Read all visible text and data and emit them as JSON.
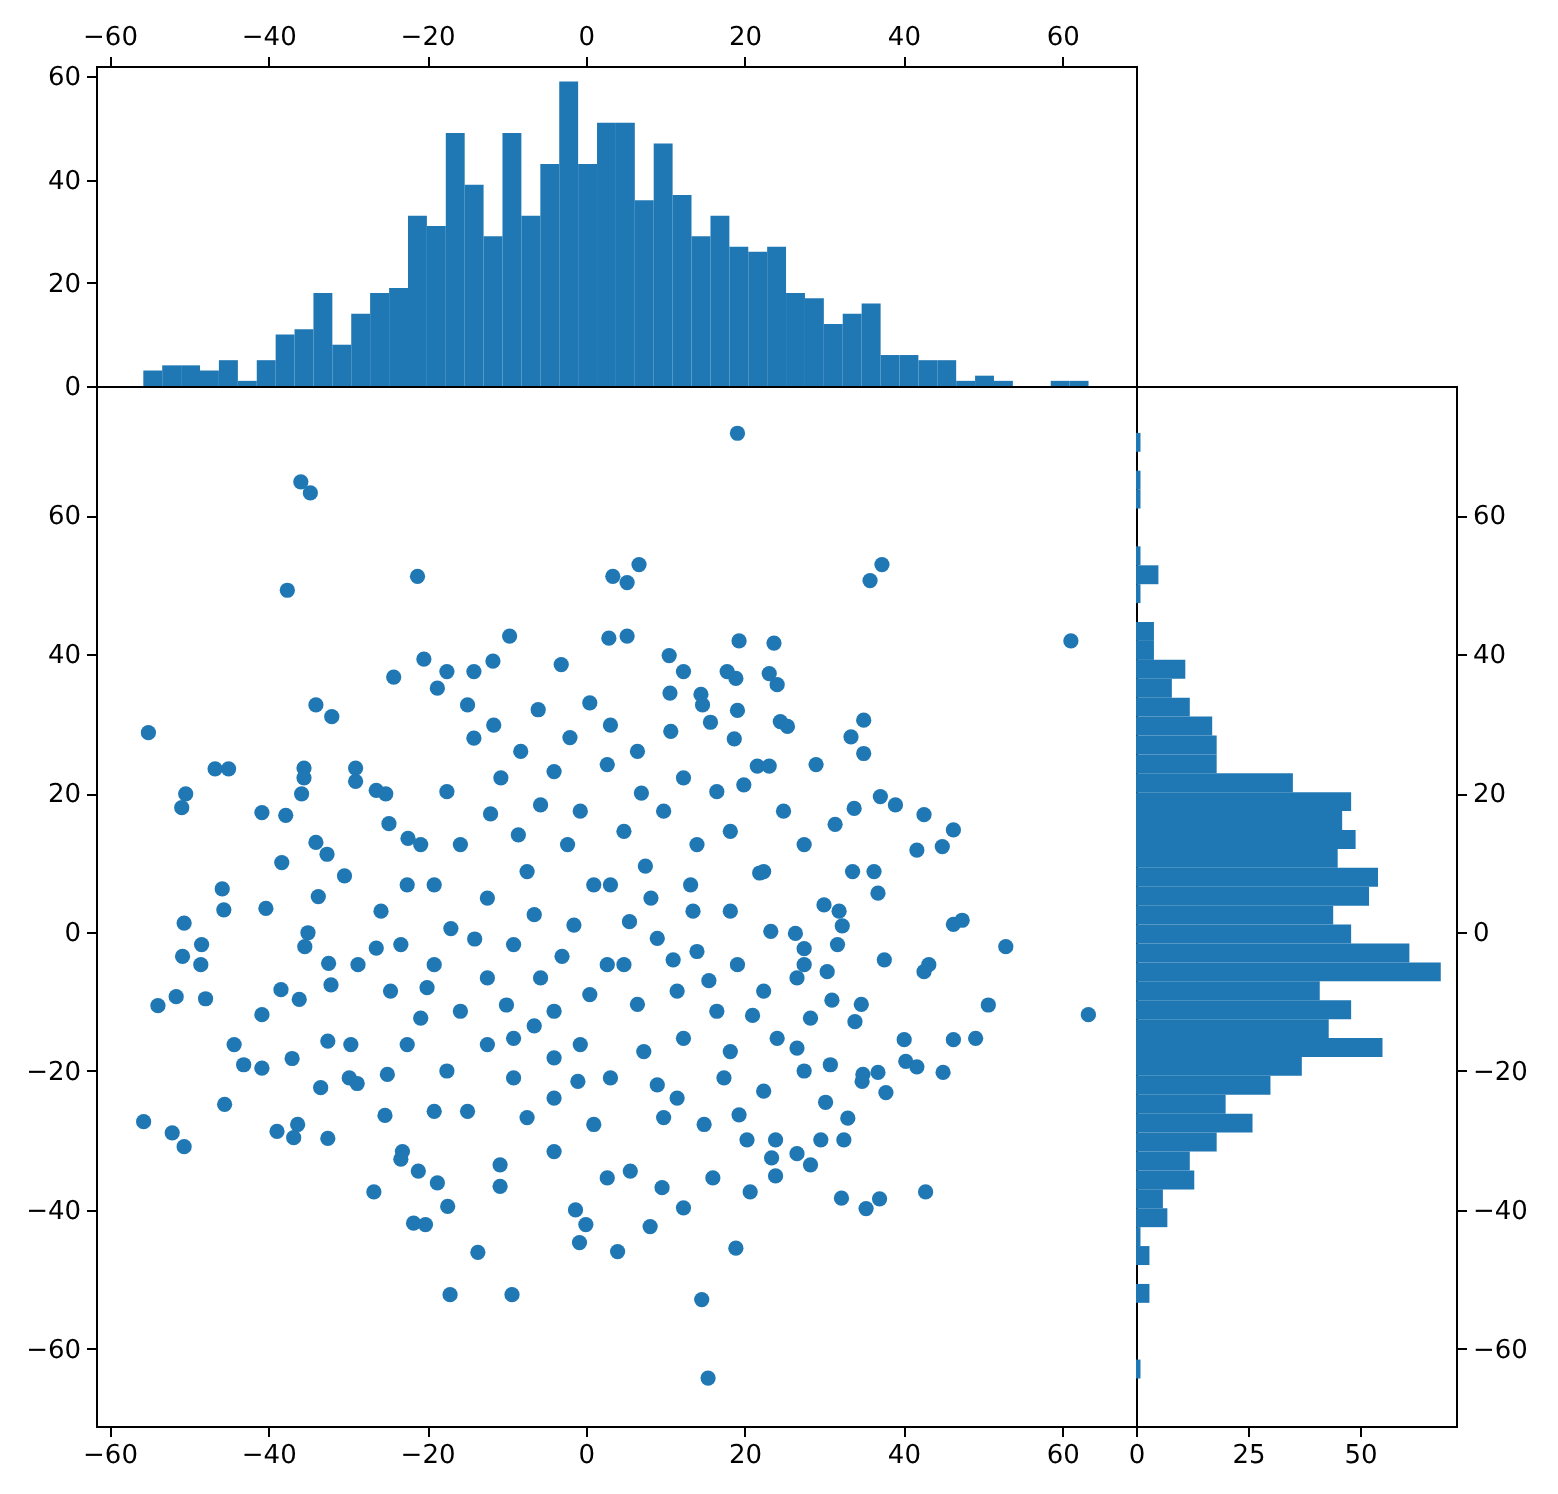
{
  "chart_data": [
    {
      "type": "histogram",
      "color": "#1f77b4",
      "bins": [
        -55.74,
        -53.36,
        -50.98,
        -48.6,
        -46.22,
        -43.83,
        -41.45,
        -39.07,
        -36.69,
        -34.31,
        -31.93,
        -29.55,
        -27.17,
        -24.78,
        -22.4,
        -20.02,
        -17.64,
        -15.26,
        -12.88,
        -10.5,
        -8.12,
        -5.73,
        -3.35,
        -0.97,
        1.41,
        3.79,
        6.17,
        8.55,
        10.93,
        13.31,
        15.7,
        18.08,
        20.46,
        22.84,
        25.22,
        27.6,
        29.98,
        32.36,
        34.74,
        37.13,
        39.51,
        41.89,
        44.27,
        46.65,
        49.03,
        51.41,
        53.79,
        56.17,
        58.56,
        60.94,
        63.32
      ],
      "values": [
        3,
        4,
        4,
        3,
        5,
        1,
        5,
        10,
        11,
        18,
        8,
        14,
        18,
        19,
        33,
        31,
        49,
        39,
        29,
        49,
        33,
        43,
        59,
        43,
        51,
        51,
        36,
        47,
        37,
        29,
        33,
        27,
        26,
        27,
        18,
        17,
        12,
        14,
        16,
        6,
        6,
        5,
        5,
        1,
        2,
        1,
        0,
        0,
        1,
        1
      ],
      "xlim": [
        -61.7,
        69.3
      ],
      "xticks": [
        -60,
        -40,
        -20,
        0,
        20,
        40,
        60
      ],
      "ylim": [
        0,
        62
      ],
      "yticks": [
        0,
        20,
        40,
        60
      ]
    },
    {
      "type": "scatter",
      "color": "#1f77b4",
      "marker": "circle",
      "x": [
        -35.9,
        -34.7,
        -37.6,
        -21.2,
        3.4,
        -9.6,
        -55.1,
        -20.4,
        -24.2,
        -11.7,
        -3.1,
        -34.0,
        -32.0,
        -46.7,
        -45.0,
        -50.4,
        -50.9,
        -40.8,
        -37.8,
        -35.5,
        -35.5,
        -35.8,
        -29.0,
        -29.0,
        -26.4,
        -25.2,
        -45.8,
        -45.6,
        -50.6,
        -40.3,
        -50.8,
        -48.5,
        -48.4,
        -53.9,
        -51.6,
        -47.9,
        -40.8,
        -44.3,
        -43.1,
        -40.8,
        -45.5,
        -55.7,
        -52.1,
        -50.6,
        -38.9,
        -36.8,
        -36.3,
        -32.5,
        -33.4,
        -37.0,
        -26.7,
        -21.7,
        -20.2,
        -17.4,
        -13.6,
        -17.1,
        -9.3,
        -23.1,
        -23.3,
        -21.1,
        -18.7,
        -10.8,
        -10.8,
        -1.3,
        0.0,
        -0.8,
        -25.3,
        -29.6,
        -32.5,
        -29.8,
        -28.8,
        -38.4,
        -36.1,
        -33.7,
        -30.4,
        -38.3,
        -34.0,
        -32.6,
        -24.8,
        -22.4,
        -35.0,
        -35.4,
        -28.7,
        -26.4,
        -32.4,
        -32.1,
        19.1,
        5.2,
        6.7,
        35.8,
        37.3,
        61.1,
        19.3,
        23.7,
        10.5,
        12.3,
        2.9,
        5.2,
        17.8,
        18.9,
        23.1,
        24.1,
        14.5,
        14.7,
        10.6,
        19.1,
        18.7,
        15.7,
        24.5,
        25.4,
        35.0,
        33.4,
        35.0,
        29.0,
        21.6,
        23.1,
        46.3,
        42.6,
        39.0,
        37.1,
        41.7,
        44.9,
        36.8,
        46.3,
        47.4,
        52.9,
        37.6,
        42.6,
        43.2,
        50.7,
        63.3,
        40.1,
        46.3,
        49.1,
        40.3,
        41.7,
        45.0,
        37.8,
        34.9,
        36.8,
        34.8,
        30.2,
        33.0,
        32.5,
        29.6,
        32.2,
        35.3,
        37.0,
        42.8,
        20.7,
        23.9,
        18.9,
        14.6,
        15.4,
        8.1,
        12.3,
        9.6,
        4.0,
        16.0,
        23.4,
        26.6,
        28.3,
        20.3,
        23.9,
        26.4,
        27.5,
        31.0,
        30.4,
        31.9,
        32.3,
        33.6,
        36.3,
        31.4,
        33.8,
        21.9,
        13.5,
        19.3,
        33.9,
        34.7,
        -19.1,
        -15.8,
        -12.4,
        -9.1,
        -5.7,
        -4.0,
        -0.7,
        2.7,
        1.0,
        -2.3,
        -5.7,
        -10.7,
        -14.1,
        -17.5,
        -20.8,
        -22.5,
        -19.1,
        -15.8,
        -12.4,
        -9.1,
        -4.0,
        1.0,
        2.7,
        -12.4,
        -7.4,
        -0.7,
        2.7,
        -4.0,
        -8.2,
        -11.6,
        -14.9,
        -18.7,
        -14.1,
        -17.5,
        -25.8,
        -23.3,
        -24.6,
        -20.8,
        -22.5,
        -17.5,
        -19.1,
        -14.9,
        -7.4,
        -4.0,
        -9.1,
        -4.0,
        3.1,
        6.5,
        10.7,
        12.3,
        16.5,
        19.9,
        24.9,
        27.5,
        22.4,
        18.2,
        14.0,
        9.8,
        4.8,
        3.1,
        8.2,
        13.2,
        18.2,
        23.3,
        19.1,
        14.0,
        9.0,
        4.8,
        6.5,
        11.5,
        16.5,
        22.4,
        26.6,
        28.3,
        24.1,
        18.2,
        12.3,
        7.3,
        3.1,
        9.0,
        17.4,
        22.4,
        27.5,
        9.8,
        14.9,
        5.6,
        11.5,
        30.8,
        26.6,
        30.0,
        27.5,
        31.7,
        -1.5,
        -6.5,
        -10.0,
        0.5,
        5.5,
        -3.0,
        7.5,
        -8.5,
        0.5,
        -6.0,
        -1.0,
        -14.0,
        -17.0,
        11.0,
        15.5,
        -12.0,
        -2.0,
        7.0,
        -25.0,
        -20.0,
        21.0,
        -6.5
      ],
      "values": [
        64.8,
        63.2,
        49.2,
        51.2,
        51.2,
        42.6,
        28.7,
        39.3,
        36.7,
        39.0,
        38.5,
        32.7,
        31.0,
        23.5,
        23.5,
        19.9,
        17.9,
        17.2,
        16.8,
        23.6,
        22.2,
        19.9,
        23.6,
        21.7,
        20.4,
        19.9,
        6.2,
        3.2,
        1.3,
        3.4,
        -3.5,
        -4.7,
        -1.8,
        -10.6,
        -9.3,
        -9.6,
        -11.9,
        -16.2,
        -19.1,
        -19.6,
        -24.8,
        -27.3,
        -28.9,
        -30.9,
        -28.7,
        -29.6,
        -27.7,
        -29.7,
        -22.4,
        -18.2,
        -37.4,
        -41.9,
        -42.1,
        -39.5,
        -46.1,
        -52.2,
        -52.2,
        -31.6,
        -32.7,
        -34.4,
        -36.1,
        -33.5,
        -36.6,
        -40.0,
        -42.1,
        -44.7,
        -26.4,
        -16.2,
        -15.7,
        -21.0,
        -21.8,
        -8.3,
        -9.7,
        5.1,
        8.1,
        10.0,
        12.9,
        11.2,
        15.6,
        13.5,
        -0.1,
        -2.1,
        -4.7,
        -2.3,
        -4.5,
        -7.6,
        71.8,
        50.3,
        52.9,
        50.6,
        52.9,
        41.9,
        41.9,
        41.6,
        39.8,
        37.5,
        42.3,
        42.6,
        37.5,
        36.5,
        37.2,
        35.6,
        34.2,
        32.7,
        34.4,
        31.9,
        27.8,
        30.2,
        30.3,
        29.6,
        30.5,
        28.1,
        25.7,
        24.1,
        23.9,
        23.9,
        14.7,
        16.9,
        18.3,
        19.5,
        11.8,
        12.3,
        5.6,
        1.1,
        1.7,
        -2.1,
        -4.0,
        -5.7,
        -4.7,
        -10.5,
        -11.9,
        -15.5,
        -15.5,
        -15.3,
        -18.6,
        -19.4,
        -20.2,
        -23.1,
        -20.5,
        -20.2,
        -21.5,
        -24.5,
        -26.8,
        -29.9,
        -29.9,
        -38.3,
        -39.8,
        -38.4,
        -37.4,
        -37.4,
        -35.1,
        -45.5,
        -52.9,
        -64.2,
        -42.4,
        -39.7,
        -36.8,
        -46.0,
        -35.4,
        -32.5,
        -31.9,
        -33.5,
        -29.9,
        -29.9,
        -0.2,
        -2.4,
        -9.8,
        -5.7,
        3.0,
        0.9,
        8.7,
        8.7,
        15.5,
        17.8,
        8.5,
        3.0,
        -26.3,
        -12.9,
        -10.4,
        6.8,
        12.6,
        4.9,
        -1.8,
        -6.6,
        -11.4,
        -16.2,
        -4.7,
        6.8,
        12.6,
        18.3,
        22.2,
        27.9,
        20.2,
        12.6,
        6.8,
        -4.7,
        -11.4,
        -16.2,
        -21.0,
        -23.9,
        -27.7,
        -35.4,
        -6.6,
        8.7,
        17.4,
        24.1,
        23.1,
        26.0,
        29.8,
        32.7,
        35.1,
        37.5,
        37.5,
        3.0,
        -1.8,
        -8.5,
        -12.4,
        -16.2,
        -20.0,
        -25.8,
        -25.8,
        -26.7,
        -31.6,
        -15.3,
        -18.1,
        29.8,
        26.0,
        28.9,
        22.2,
        20.2,
        21.2,
        17.4,
        12.6,
        8.7,
        14.5,
        12.6,
        17.4,
        14.5,
        6.8,
        4.9,
        6.8,
        3.0,
        0.1,
        -4.7,
        -2.8,
        -0.9,
        -4.7,
        -10.4,
        -8.5,
        -11.4,
        -8.5,
        -6.6,
        -12.4,
        -15.3,
        -17.2,
        -15.3,
        -17.2,
        -21.0,
        -22.0,
        -21.0,
        -22.9,
        -20.0,
        -26.7,
        -27.7,
        -34.4,
        -23.9,
        -19.1,
        -16.7,
        3.9,
        -4.7,
        -1.8,
        1.0,
        2.5,
        -10.5,
        -9.0,
        1.5,
        -3.5,
        9.5,
        14.0,
        33.0,
        32.0,
        -21.5,
        -1.0,
        0.5,
        -4.0,
        -7.0,
        17.0,
        28.0,
        20.0,
        -20.5,
        -8.0,
        -12.0,
        -13.5
      ],
      "xlim": [
        -61.7,
        69.3
      ],
      "xticks": [
        -60,
        -40,
        -20,
        0,
        20,
        40,
        60
      ],
      "ylim": [
        -71.1,
        78.6
      ],
      "yticks": [
        -60,
        -40,
        -20,
        0,
        20,
        40,
        60
      ]
    },
    {
      "type": "histogram",
      "orientation": "horizontal",
      "color": "#1f77b4",
      "bins": [
        -64.26,
        -61.54,
        -58.82,
        -56.09,
        -53.37,
        -50.65,
        -47.93,
        -45.2,
        -42.48,
        -39.76,
        -37.04,
        -34.32,
        -31.59,
        -28.87,
        -26.15,
        -23.43,
        -20.7,
        -17.98,
        -15.26,
        -12.54,
        -9.82,
        -7.09,
        -4.37,
        -1.65,
        1.07,
        3.8,
        6.52,
        9.24,
        11.96,
        14.68,
        17.41,
        20.13,
        22.85,
        25.57,
        28.29,
        31.02,
        33.74,
        36.46,
        39.18,
        41.91,
        44.63,
        47.35,
        50.07,
        52.79,
        55.52,
        58.24,
        60.96,
        63.68,
        66.41,
        69.13,
        71.85
      ],
      "values": [
        1,
        0,
        0,
        0,
        3,
        0,
        3,
        1,
        7,
        6,
        13,
        12,
        18,
        26,
        20,
        30,
        37,
        55,
        43,
        48,
        41,
        68,
        61,
        48,
        44,
        52,
        54,
        45,
        49,
        46,
        48,
        35,
        18,
        18,
        17,
        12,
        8,
        11,
        4,
        4,
        0,
        1,
        5,
        1,
        0,
        0,
        1,
        1,
        0,
        1
      ],
      "xlim": [
        0,
        71.4
      ],
      "xticks": [
        0,
        25,
        50
      ],
      "ylim": [
        -71.1,
        78.6
      ],
      "yticks": [
        -60,
        -40,
        -20,
        0,
        20,
        40,
        60
      ]
    }
  ]
}
